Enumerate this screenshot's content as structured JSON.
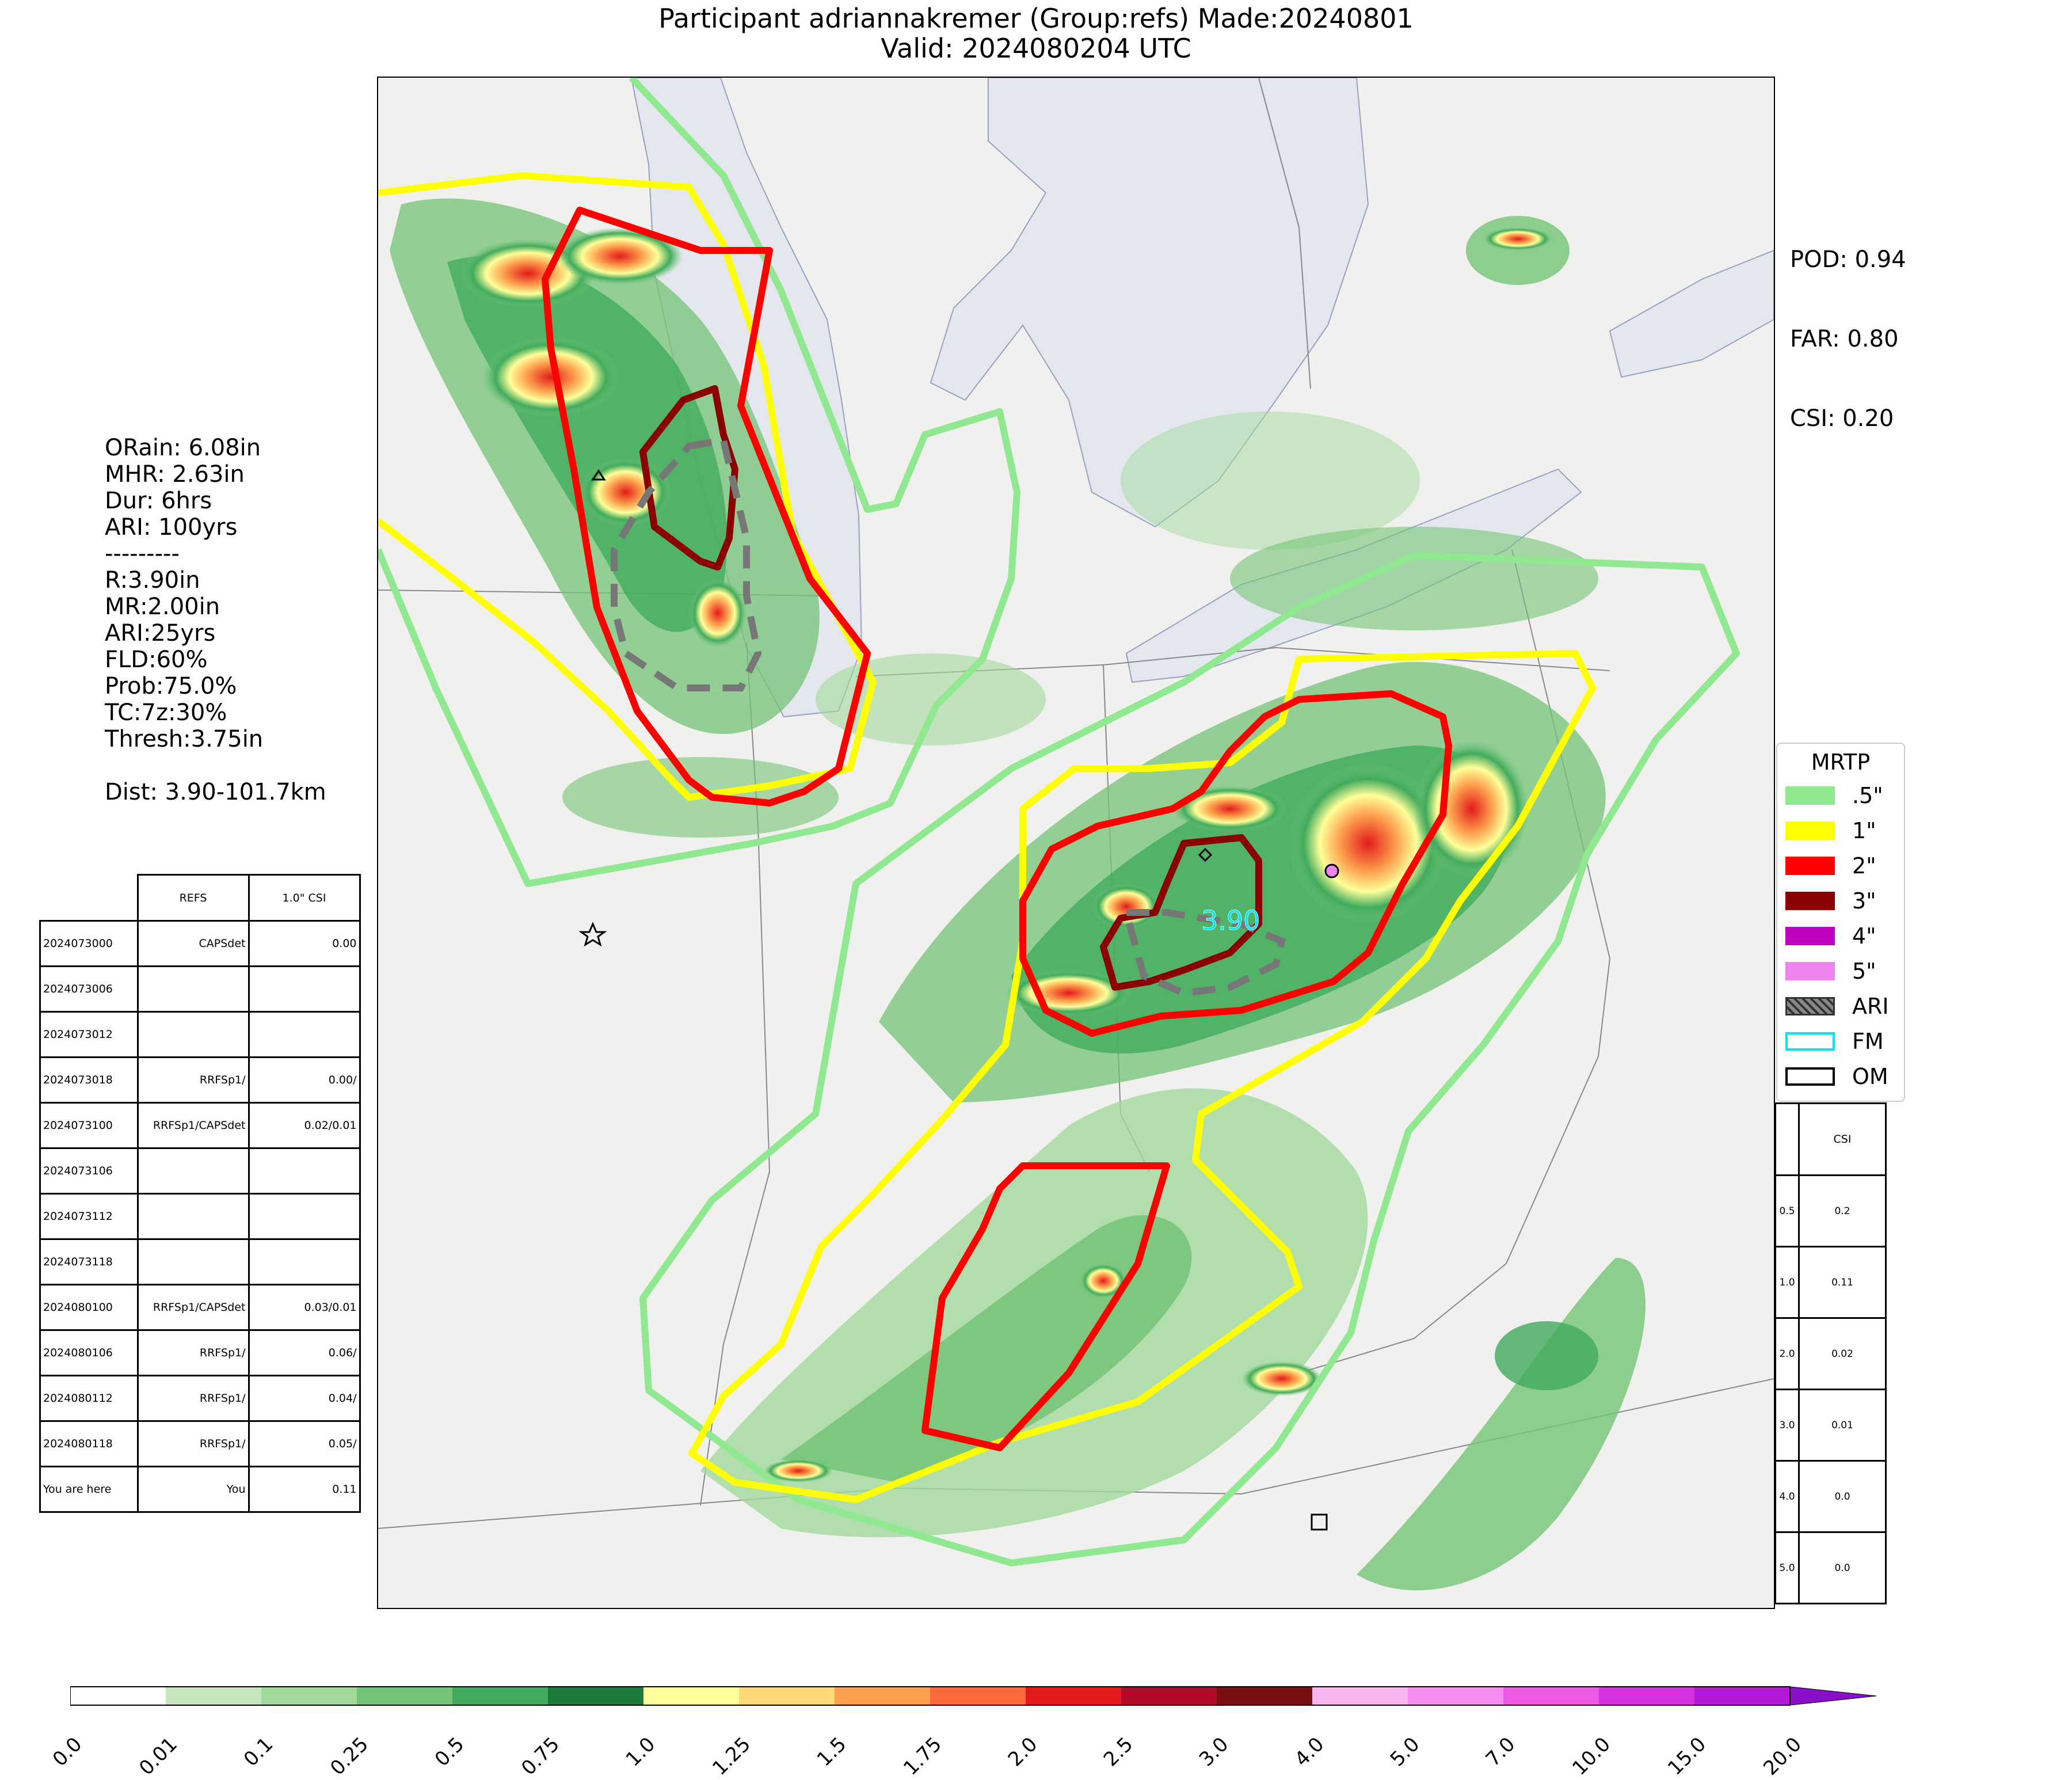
{
  "title": {
    "line1": "Participant adriannakremer (Group:refs) Made:20240801",
    "line2": "Valid: 2024080204 UTC"
  },
  "scores": {
    "pod": "POD: 0.94",
    "far": "FAR: 0.80",
    "csi": "CSI: 0.20"
  },
  "point_stats": [
    "ORain: 6.08in",
    "MHR: 2.63in",
    "Dur: 6hrs",
    "ARI: 100yrs",
    "---------",
    "R:3.90in",
    "MR:2.00in",
    "ARI:25yrs",
    "FLD:60%",
    "Prob:75.0%",
    "TC:7z:30%",
    "Thresh:3.75in",
    "",
    "Dist: 3.90-101.7km"
  ],
  "map_label": "3.90",
  "comparison_table": {
    "headers": [
      "",
      "REFS",
      "1.0\" CSI"
    ],
    "rows": [
      [
        "2024073000",
        "CAPSdet",
        "0.00"
      ],
      [
        "2024073006",
        "",
        ""
      ],
      [
        "2024073012",
        "",
        ""
      ],
      [
        "2024073018",
        "RRFSp1/",
        "0.00/"
      ],
      [
        "2024073100",
        "RRFSp1/CAPSdet",
        "0.02/0.01"
      ],
      [
        "2024073106",
        "",
        ""
      ],
      [
        "2024073112",
        "",
        ""
      ],
      [
        "2024073118",
        "",
        ""
      ],
      [
        "2024080100",
        "RRFSp1/CAPSdet",
        "0.03/0.01"
      ],
      [
        "2024080106",
        "RRFSp1/",
        "0.06/"
      ],
      [
        "2024080112",
        "RRFSp1/",
        "0.04/"
      ],
      [
        "2024080118",
        "RRFSp1/",
        "0.05/"
      ],
      [
        "You are here",
        "You",
        "0.11"
      ]
    ]
  },
  "threshold_csi": {
    "header": "CSI",
    "rows": [
      [
        "0.5",
        "0.2"
      ],
      [
        "1.0",
        "0.11"
      ],
      [
        "2.0",
        "0.02"
      ],
      [
        "3.0",
        "0.01"
      ],
      [
        "4.0",
        "0.0"
      ],
      [
        "5.0",
        "0.0"
      ]
    ]
  },
  "legend": {
    "title": "MRTP",
    "items": [
      {
        "label": ".5\"",
        "color": "#90e890",
        "style": "fill"
      },
      {
        "label": "1\"",
        "color": "#ffff00",
        "style": "fill"
      },
      {
        "label": "2\"",
        "color": "#ff0000",
        "style": "fill"
      },
      {
        "label": "3\"",
        "color": "#8b0000",
        "style": "fill"
      },
      {
        "label": "4\"",
        "color": "#c000c0",
        "style": "fill"
      },
      {
        "label": "5\"",
        "color": "#ee82ee",
        "style": "fill"
      },
      {
        "label": "ARI",
        "color": "#888888",
        "style": "hatch"
      },
      {
        "label": "FM",
        "color": "#00e5ee",
        "style": "outline"
      },
      {
        "label": "OM",
        "color": "#000000",
        "style": "outline"
      }
    ]
  },
  "colorbar": {
    "ticks": [
      "0.0",
      "0.01",
      "0.1",
      "0.25",
      "0.5",
      "0.75",
      "1.0",
      "1.25",
      "1.5",
      "1.75",
      "2.0",
      "2.5",
      "3.0",
      "4.0",
      "5.0",
      "7.0",
      "10.0",
      "15.0",
      "20.0"
    ],
    "colors": [
      "#ffffff",
      "#c7e6c0",
      "#a1d99b",
      "#74c476",
      "#41ab5d",
      "#1a7a3a",
      "#ffff99",
      "#fed976",
      "#fd9f4c",
      "#fc6a3a",
      "#e31a1c",
      "#b10c2c",
      "#7a0f0f",
      "#f7b6f0",
      "#f58cf0",
      "#ee5ae6",
      "#d633e0",
      "#b119d6",
      "#8a0fc9"
    ]
  }
}
